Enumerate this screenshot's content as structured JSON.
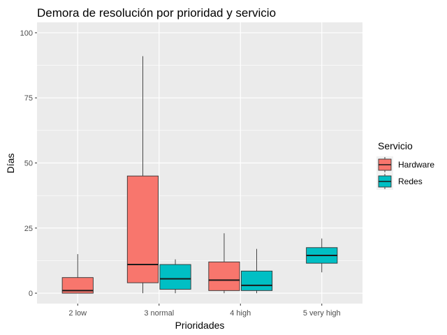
{
  "chart_data": {
    "type": "boxplot",
    "title": "Demora de resolución por prioridad y servicio",
    "xlabel": "Prioridades",
    "ylabel": "Días",
    "categories": [
      "2 low",
      "3 normal",
      "4 high",
      "5 very high"
    ],
    "ylim": [
      -4,
      104
    ],
    "yticks": [
      0,
      25,
      50,
      75,
      100
    ],
    "grid": true,
    "legend": {
      "title": "Servicio",
      "position": "right"
    },
    "series": [
      {
        "name": "Hardware",
        "color": "#F8766D",
        "boxes": [
          {
            "category": "2 low",
            "min": 0,
            "q1": 0,
            "median": 1,
            "q3": 6,
            "max": 15
          },
          {
            "category": "3 normal",
            "min": 0,
            "q1": 4,
            "median": 11,
            "q3": 45,
            "max": 91
          },
          {
            "category": "4 high",
            "min": 0,
            "q1": 1,
            "median": 5,
            "q3": 12,
            "max": 23
          }
        ]
      },
      {
        "name": "Redes",
        "color": "#00BFC4",
        "boxes": [
          {
            "category": "3 normal",
            "min": 0,
            "q1": 1.5,
            "median": 5.5,
            "q3": 11,
            "max": 13
          },
          {
            "category": "4 high",
            "min": 0,
            "q1": 1,
            "median": 3,
            "q3": 8.5,
            "max": 17
          },
          {
            "category": "5 very high",
            "min": 8,
            "q1": 11.5,
            "median": 14.5,
            "q3": 17.5,
            "max": 21
          }
        ]
      }
    ]
  }
}
